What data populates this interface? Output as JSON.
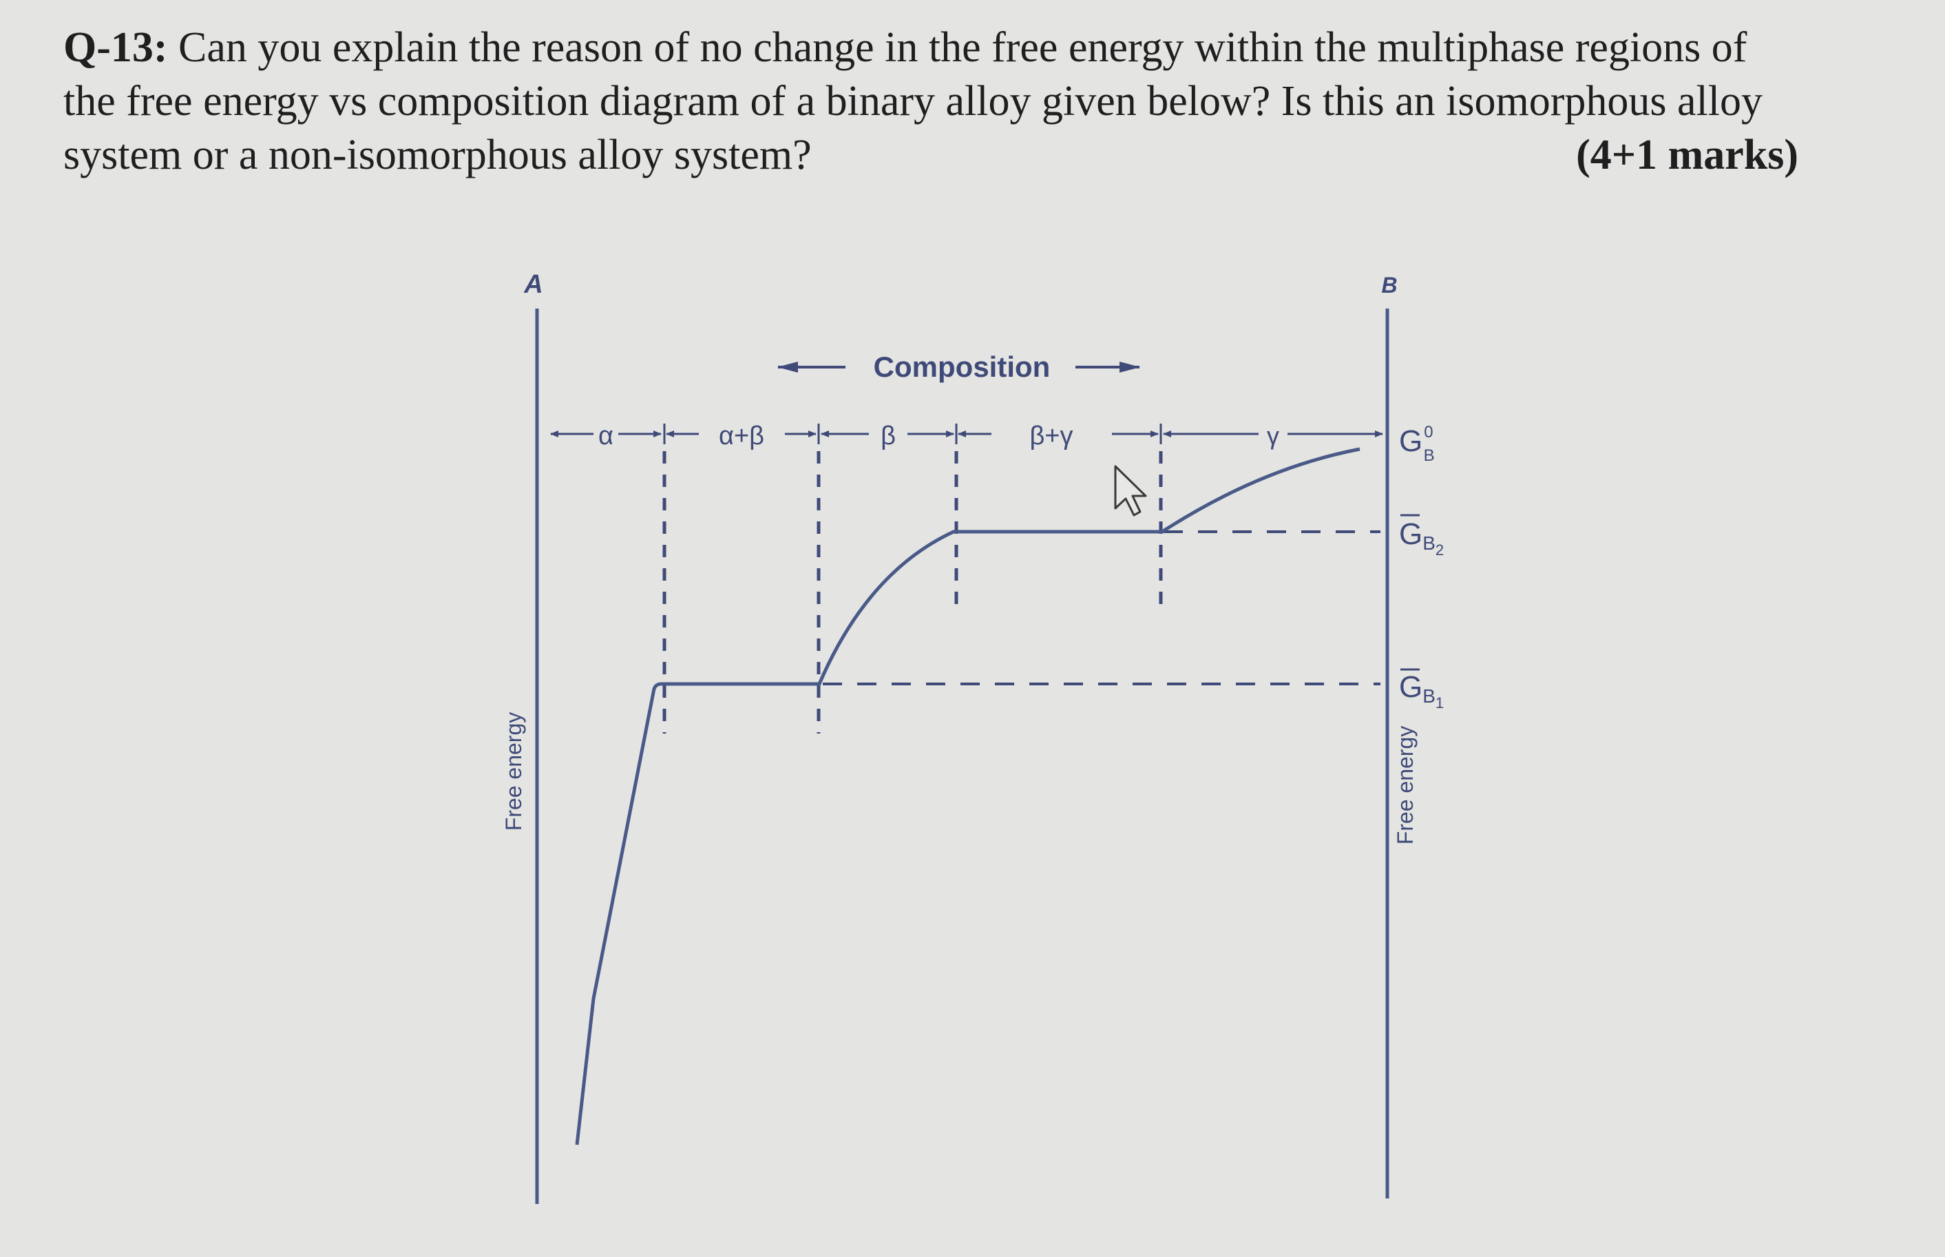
{
  "question": {
    "number": "Q-13:",
    "line1": "Can you explain the reason of no change in the free energy within the multiphase regions of",
    "line2": "the free energy vs composition diagram of a binary alloy given below? Is this an isomorphous alloy",
    "line3": "system or a non-isomorphous alloy system?",
    "marks": "(4+1 marks)"
  },
  "diagram": {
    "component_left": "A",
    "component_right": "B",
    "composition_label": "Composition",
    "left_axis_label": "Free energy",
    "right_axis_label": "Free energy",
    "phase_regions": [
      "α",
      "α+β",
      "β",
      "β+γ",
      "γ"
    ],
    "energy_levels": {
      "gb0_main": "G",
      "gb0_sup": "0",
      "gb0_sub": "B",
      "gb2_main": "G",
      "gb2_sub": "B",
      "gb2_index": "2",
      "gb1_main": "G",
      "gb1_sub": "B",
      "gb1_index": "1"
    },
    "line_color": "#4a5a88",
    "text_color": "#3f4a78"
  }
}
